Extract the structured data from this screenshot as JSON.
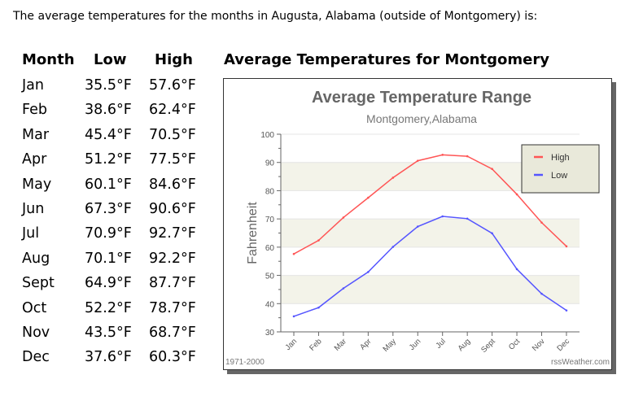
{
  "intro": "The average temperatures for the months in Augusta, Alabama (outside of Montgomery) is:",
  "table": {
    "headers": [
      "Month",
      "Low",
      "High"
    ],
    "rows": [
      [
        "Jan",
        "35.5°F",
        "57.6°F"
      ],
      [
        "Feb",
        "38.6°F",
        "62.4°F"
      ],
      [
        "Mar",
        "45.4°F",
        "70.5°F"
      ],
      [
        "Apr",
        "51.2°F",
        "77.5°F"
      ],
      [
        "May",
        "60.1°F",
        "84.6°F"
      ],
      [
        "Jun",
        "67.3°F",
        "90.6°F"
      ],
      [
        "Jul",
        "70.9°F",
        "92.7°F"
      ],
      [
        "Aug",
        "70.1°F",
        "92.2°F"
      ],
      [
        "Sept",
        "64.9°F",
        "87.7°F"
      ],
      [
        "Oct",
        "52.2°F",
        "78.7°F"
      ],
      [
        "Nov",
        "43.5°F",
        "68.7°F"
      ],
      [
        "Dec",
        "37.6°F",
        "60.3°F"
      ]
    ]
  },
  "chart_heading": "Average Temperatures for Montgomery",
  "chart_data": {
    "type": "line",
    "title": "Average Temperature Range",
    "subtitle": "Montgomery,Alabama",
    "ylabel": "Fahrenheit",
    "ylim": [
      30,
      100
    ],
    "yticks": [
      30,
      40,
      50,
      60,
      70,
      80,
      90,
      100
    ],
    "grid": true,
    "categories": [
      "Jan",
      "Feb",
      "Mar",
      "Apr",
      "May",
      "Jun",
      "Jul",
      "Aug",
      "Sept",
      "Oct",
      "Nov",
      "Dec"
    ],
    "series": [
      {
        "name": "High",
        "color": "#ff5555",
        "values": [
          57.6,
          62.4,
          70.5,
          77.5,
          84.6,
          90.6,
          92.7,
          92.2,
          87.7,
          78.7,
          68.7,
          60.3
        ]
      },
      {
        "name": "Low",
        "color": "#5555ff",
        "values": [
          35.5,
          38.6,
          45.4,
          51.2,
          60.1,
          67.3,
          70.9,
          70.1,
          64.9,
          52.2,
          43.5,
          37.6
        ]
      }
    ],
    "legend": "top-right",
    "footer_left": "1971-2000",
    "footer_right": "rssWeather.com"
  }
}
